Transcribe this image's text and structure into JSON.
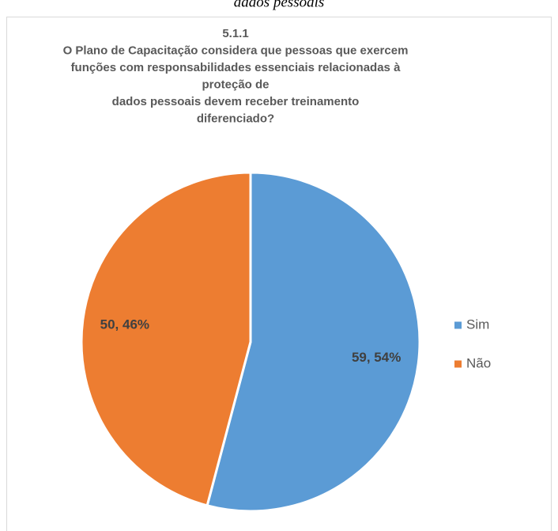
{
  "caption": "dados pessoais",
  "chart_data": {
    "type": "pie",
    "title": [
      "5.1.1",
      "O Plano de Capacitação considera que pessoas que exercem",
      "funções com responsabilidades essenciais relacionadas à",
      "proteção de",
      "dados pessoais devem receber treinamento",
      "diferenciado?"
    ],
    "categories": [
      "Sim",
      "Não"
    ],
    "values": [
      59,
      50
    ],
    "value_labels": [
      "59, 54%",
      "50, 46%"
    ],
    "colors": [
      "#5b9bd5",
      "#ed7d31"
    ],
    "legend": "right"
  }
}
